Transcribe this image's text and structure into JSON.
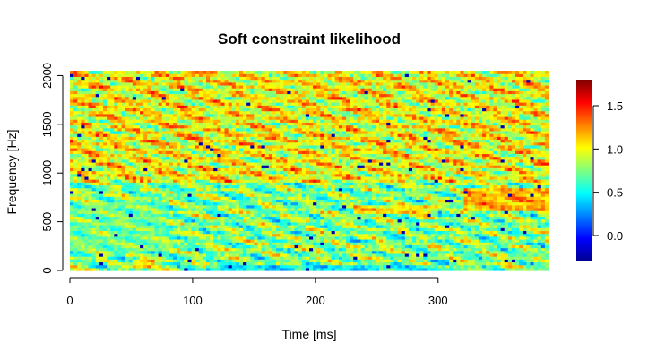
{
  "chart_data": {
    "type": "heatmap",
    "title": "Soft constraint likelihood",
    "xlabel": "Time [ms]",
    "ylabel": "Frequency [Hz]",
    "xlim": [
      0,
      390
    ],
    "ylim": [
      0,
      2050
    ],
    "x_ticks": [
      0,
      100,
      200,
      300
    ],
    "x_tick_labels": [
      "0",
      "100",
      "200",
      "300"
    ],
    "y_ticks": [
      0,
      500,
      1000,
      1500,
      2000
    ],
    "y_tick_labels": [
      "0",
      "500",
      "1000",
      "1500",
      "2000"
    ],
    "colorbar": {
      "range": [
        -0.3,
        1.8
      ],
      "ticks": [
        0.0,
        0.5,
        1.0,
        1.5
      ],
      "tick_labels": [
        "0.0",
        "0.5",
        "1.0",
        "1.5"
      ],
      "colormap": "jet"
    },
    "grid": false,
    "regions": [
      {
        "t": [
          320,
          390
        ],
        "f": [
          620,
          860
        ],
        "value": 1.7
      },
      {
        "t": [
          230,
          300
        ],
        "f": [
          580,
          660
        ],
        "value": 1.5
      },
      {
        "t": [
          50,
          70
        ],
        "f": [
          40,
          120
        ],
        "value": 1.6
      },
      {
        "t": [
          90,
          110
        ],
        "f": [
          1990,
          2050
        ],
        "value": 1.6
      },
      {
        "t": [
          110,
          300
        ],
        "f": [
          0,
          60
        ],
        "value": 0.1
      },
      {
        "t": [
          0,
          80
        ],
        "f": [
          200,
          700
        ],
        "value": 0.7
      },
      {
        "t": [
          300,
          390
        ],
        "f": [
          0,
          40
        ],
        "value": 0.6
      }
    ]
  }
}
